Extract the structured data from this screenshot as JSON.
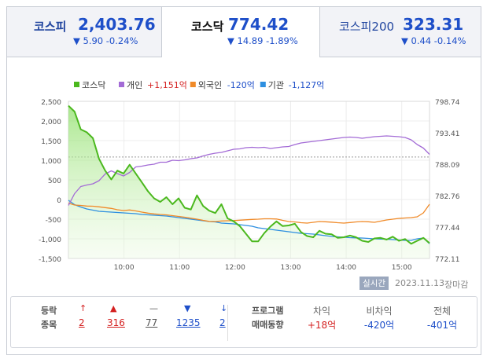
{
  "tabs": [
    {
      "name": "코스피",
      "value": "2,403.76",
      "change": "▼ 5.90 -0.24%"
    },
    {
      "name": "코스닥",
      "value": "774.42",
      "change": "▼ 14.89 -1.89%"
    },
    {
      "name": "코스피200",
      "value": "323.31",
      "change": "▼ 0.44 -0.14%"
    }
  ],
  "legend": [
    {
      "label": "코스닥",
      "value": "",
      "color": "#4bb81e"
    },
    {
      "label": "개인",
      "value": "+1,151억",
      "color": "#a36bd6",
      "vcolor": "#d42020"
    },
    {
      "label": "외국인",
      "value": "-120억",
      "color": "#f08a28",
      "vcolor": "#1e4fc9"
    },
    {
      "label": "기관",
      "value": "-1,127억",
      "color": "#2e8fe0",
      "vcolor": "#1e4fc9"
    }
  ],
  "status": {
    "live": "실시간",
    "date": "2023.11.13",
    "closed": "장마감"
  },
  "stats": {
    "label_top": "등락",
    "label_bottom": "종목",
    "counts": [
      "2",
      "316",
      "77",
      "1235",
      "2"
    ],
    "program_label_top": "프로그램",
    "program_label_bottom": "매매동향",
    "program": [
      {
        "header": "차익",
        "value": "+18억",
        "color": "#d42020"
      },
      {
        "header": "비차익",
        "value": "-420억",
        "color": "#1e4fc9"
      },
      {
        "header": "전체",
        "value": "-401억",
        "color": "#1e4fc9"
      }
    ]
  },
  "chart_data": {
    "type": "line",
    "x_ticks": [
      "10:00",
      "11:00",
      "12:00",
      "13:00",
      "14:00",
      "15:00"
    ],
    "y_left_ticks": [
      "2,500",
      "2,000",
      "1,500",
      "1,000",
      "500",
      "0",
      "-500",
      "-1,000",
      "-1,500"
    ],
    "y_left_range": [
      -1500,
      2500
    ],
    "y_right_ticks": [
      "798.74",
      "793.41",
      "788.09",
      "782.76",
      "777.44",
      "772.11"
    ],
    "y_right_range": [
      772.11,
      798.74
    ],
    "reference_line": 789.31,
    "x_range": [
      "09:00",
      "15:30"
    ],
    "series": [
      {
        "name": "코스닥",
        "axis": "right",
        "color": "#4bb81e",
        "area": true,
        "values": [
          798.0,
          797.0,
          794.0,
          793.5,
          792.5,
          789.0,
          787.0,
          785.5,
          787.0,
          786.5,
          788.0,
          786.5,
          785.0,
          783.5,
          782.3,
          781.7,
          782.5,
          781.3,
          782.3,
          780.7,
          780.4,
          782.8,
          781.0,
          780.2,
          779.8,
          781.3,
          778.9,
          778.4,
          777.6,
          776.3,
          775.0,
          775.0,
          776.4,
          777.5,
          778.4,
          777.6,
          777.7,
          778.0,
          776.6,
          775.9,
          775.7,
          776.8,
          776.3,
          776.2,
          775.6,
          775.7,
          776.0,
          775.7,
          775.1,
          774.9,
          775.5,
          775.6,
          775.3,
          775.8,
          775.1,
          775.4,
          774.6,
          775.1,
          775.6,
          774.7
        ]
      },
      {
        "name": "개인",
        "axis": "left",
        "color": "#a36bd6",
        "values": [
          -150,
          150,
          330,
          370,
          400,
          480,
          650,
          730,
          660,
          600,
          690,
          830,
          850,
          880,
          900,
          950,
          950,
          1000,
          990,
          1010,
          1040,
          1060,
          1110,
          1150,
          1180,
          1200,
          1240,
          1280,
          1290,
          1320,
          1330,
          1320,
          1330,
          1300,
          1320,
          1340,
          1350,
          1400,
          1440,
          1460,
          1480,
          1500,
          1520,
          1540,
          1560,
          1580,
          1590,
          1580,
          1560,
          1580,
          1600,
          1610,
          1620,
          1610,
          1600,
          1580,
          1520,
          1400,
          1310,
          1150
        ]
      },
      {
        "name": "외국인",
        "axis": "left",
        "color": "#f08a28",
        "values": [
          -90,
          -140,
          -150,
          -165,
          -170,
          -185,
          -205,
          -225,
          -260,
          -280,
          -265,
          -290,
          -320,
          -345,
          -365,
          -380,
          -390,
          -410,
          -430,
          -450,
          -475,
          -500,
          -530,
          -555,
          -560,
          -545,
          -540,
          -535,
          -525,
          -515,
          -505,
          -500,
          -490,
          -490,
          -495,
          -530,
          -560,
          -570,
          -590,
          -600,
          -580,
          -560,
          -565,
          -575,
          -590,
          -600,
          -585,
          -570,
          -560,
          -565,
          -580,
          -550,
          -520,
          -500,
          -480,
          -470,
          -460,
          -440,
          -340,
          -120
        ]
      },
      {
        "name": "기관",
        "axis": "left",
        "color": "#2e8fe0",
        "values": [
          -20,
          -130,
          -190,
          -240,
          -270,
          -300,
          -310,
          -320,
          -330,
          -340,
          -350,
          -360,
          -380,
          -390,
          -400,
          -410,
          -420,
          -440,
          -460,
          -480,
          -500,
          -520,
          -540,
          -560,
          -570,
          -600,
          -610,
          -620,
          -640,
          -660,
          -680,
          -720,
          -740,
          -760,
          -780,
          -800,
          -820,
          -840,
          -860,
          -870,
          -880,
          -900,
          -920,
          -940,
          -950,
          -960,
          -970,
          -975,
          -980,
          -990,
          -1000,
          -1005,
          -1010,
          -1020,
          -1030,
          -1040,
          -1040,
          -1000,
          -980,
          -1127
        ]
      }
    ]
  }
}
